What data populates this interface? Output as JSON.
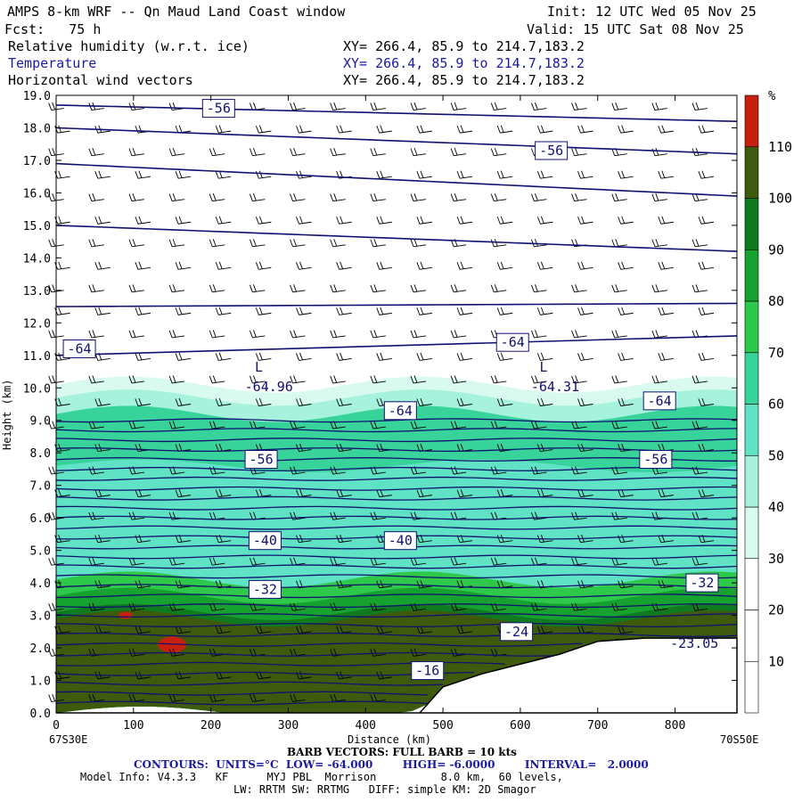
{
  "header": {
    "title": "AMPS 8-km WRF -- Qn Maud Land Coast window",
    "init": "Init: 12 UTC Wed 05 Nov 25",
    "fcst": "Fcst:   75 h",
    "valid": "Valid: 15 UTC Sat 08 Nov 25",
    "field1": "Relative humidity (w.r.t. ice)",
    "field2": "Temperature",
    "field3": "Horizontal wind vectors",
    "xy1": "XY= 266.4, 85.9 to 214.7,183.2",
    "xy2": "XY= 266.4, 85.9 to 214.7,183.2",
    "xy3": "XY= 266.4, 85.9 to 214.7,183.2"
  },
  "axes": {
    "ylabel": "Height (km)",
    "xlabel": "Distance (km)",
    "left_endpoint": "67S30E",
    "right_endpoint": "70S50E"
  },
  "footer": {
    "barb": "BARB VECTORS: FULL BARB = 10 kts",
    "contours": "CONTOURS:  UNITS=°C  LOW= -64.000        HIGH= -6.0000        INTERVAL=   2.0000",
    "model1": "Model Info: V4.3.3   KF      MYJ PBL  Morrison          8.0 km,  60 levels,",
    "model2": "LW: RRTM SW: RRTMG   DIFF: simple KM: 2D Smagor"
  },
  "colorbar": {
    "unit": "%",
    "labels": [
      "10",
      "20",
      "30",
      "40",
      "50",
      "60",
      "70",
      "80",
      "90",
      "100",
      "110"
    ],
    "colors": [
      "#ffffff",
      "#ffffff",
      "#ffffff",
      "#d9fbef",
      "#a6f2dd",
      "#5fe3c4",
      "#38d39a",
      "#2ec84a",
      "#16a22e",
      "#0f7a1f",
      "#3e5a0c",
      "#c8200e"
    ]
  },
  "chart_data": {
    "type": "heatmap",
    "title": "AMPS 8-km WRF -- Qn Maud Land Coast window",
    "xlabel": "Distance (km)",
    "ylabel": "Height (km)",
    "xlim": [
      0,
      880
    ],
    "ylim": [
      0,
      19
    ],
    "x_ticks": [
      0,
      100,
      200,
      300,
      400,
      500,
      600,
      700,
      800
    ],
    "y_ticks": [
      0.0,
      1.0,
      2.0,
      3.0,
      4.0,
      5.0,
      6.0,
      7.0,
      8.0,
      9.0,
      10.0,
      11.0,
      12.0,
      13.0,
      14.0,
      15.0,
      16.0,
      17.0,
      18.0,
      19.0
    ],
    "colorbar_levels": [
      10,
      20,
      30,
      40,
      50,
      60,
      70,
      80,
      90,
      100,
      110
    ],
    "contour_labels": [
      {
        "value": "-56",
        "x": 210,
        "y": 18.6
      },
      {
        "value": "-56",
        "x": 640,
        "y": 17.3
      },
      {
        "value": "-64",
        "x": 30,
        "y": 11.2
      },
      {
        "value": "-64",
        "x": 590,
        "y": 11.4
      },
      {
        "value": "-64",
        "x": 445,
        "y": 9.3
      },
      {
        "value": "-64",
        "x": 780,
        "y": 9.6
      },
      {
        "value": "-56",
        "x": 265,
        "y": 7.8
      },
      {
        "value": "-56",
        "x": 775,
        "y": 7.8
      },
      {
        "value": "-40",
        "x": 270,
        "y": 5.3
      },
      {
        "value": "-40",
        "x": 445,
        "y": 5.3
      },
      {
        "value": "-32",
        "x": 270,
        "y": 3.8
      },
      {
        "value": "-32",
        "x": 835,
        "y": 4.0
      },
      {
        "value": "-24",
        "x": 595,
        "y": 2.5
      },
      {
        "value": "-16",
        "x": 480,
        "y": 1.3
      }
    ],
    "annotations": [
      {
        "text": "L",
        "x": 262,
        "y": 10.5
      },
      {
        "text": "-64.96",
        "x": 275,
        "y": 9.9
      },
      {
        "text": "L",
        "x": 630,
        "y": 10.5
      },
      {
        "text": "-64.31",
        "x": 645,
        "y": 9.9
      },
      {
        "text": "-23.05",
        "x": 825,
        "y": 2.0
      }
    ],
    "terrain_height_km": [
      [
        0,
        0
      ],
      [
        470,
        0
      ],
      [
        500,
        0.8
      ],
      [
        550,
        1.2
      ],
      [
        650,
        1.8
      ],
      [
        700,
        2.2
      ],
      [
        760,
        2.3
      ],
      [
        880,
        2.3
      ]
    ]
  }
}
